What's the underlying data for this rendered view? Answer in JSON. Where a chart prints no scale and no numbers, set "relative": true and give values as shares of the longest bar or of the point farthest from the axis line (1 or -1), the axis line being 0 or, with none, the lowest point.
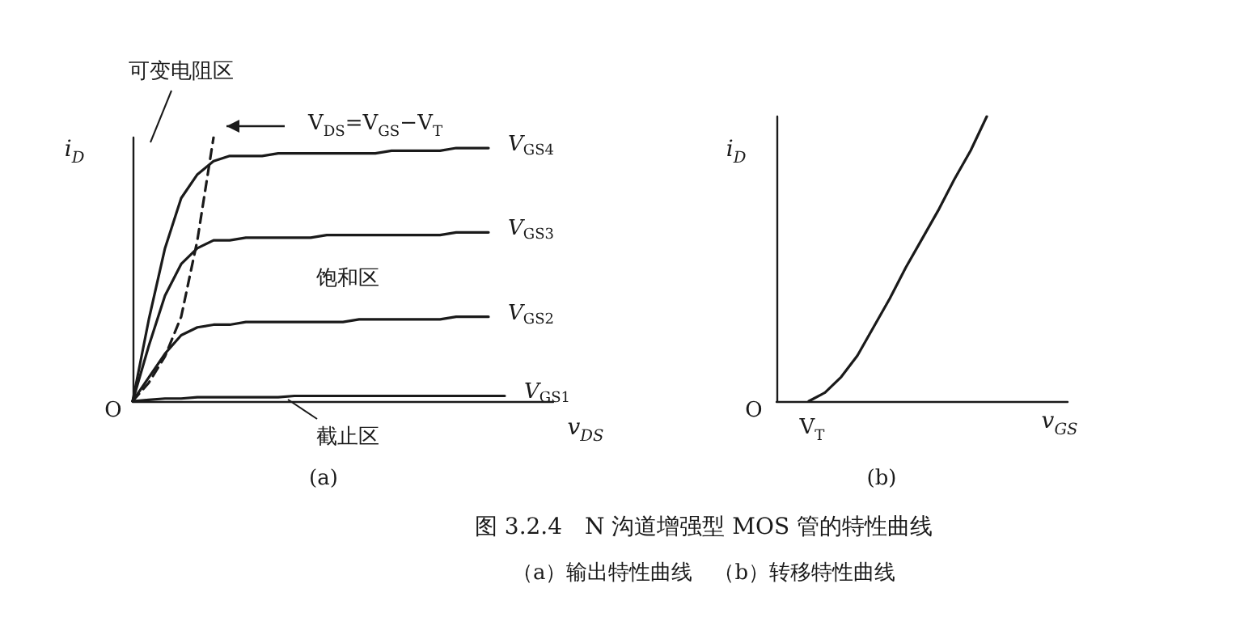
{
  "chart_data": [
    {
      "type": "line",
      "relative": true,
      "title": "图 3.2.4　N 沟道增强型 MOS 管的特性曲线",
      "subtitle": "（a）输出特性曲线　（b）转移特性曲线",
      "xlabel": "v$_{DS}$",
      "ylabel": "i$_{D}$",
      "marker": "none",
      "categories": [
        null,
        null,
        null,
        null,
        null,
        null,
        null,
        null,
        null,
        null,
        null,
        null,
        null,
        null,
        null,
        null,
        null,
        null,
        null,
        null,
        null,
        null,
        null,
        null,
        null,
        null,
        null
      ],
      "series": [
        {
          "name": "V$_{GS4}$",
          "color": "#1a1a1a",
          "values": [
            0,
            0.31,
            0.58,
            0.77,
            0.86,
            0.91,
            0.93,
            0.93,
            0.93,
            0.94,
            0.94,
            0.94,
            0.94,
            0.94,
            0.94,
            0.94,
            0.95,
            0.95,
            0.95,
            0.95,
            0.96,
            0.96,
            0.96,
            null,
            null,
            null,
            null
          ]
        },
        {
          "name": "V$_{GS3}$",
          "color": "#1a1a1a",
          "values": [
            0,
            0.21,
            0.4,
            0.52,
            0.58,
            0.61,
            0.61,
            0.62,
            0.62,
            0.62,
            0.62,
            0.62,
            0.63,
            0.63,
            0.63,
            0.63,
            0.63,
            0.63,
            0.63,
            0.63,
            0.64,
            0.64,
            0.64,
            null,
            null,
            null,
            null
          ]
        },
        {
          "name": "V$_{GS2}$",
          "color": "#1a1a1a",
          "values": [
            0,
            0.09,
            0.18,
            0.25,
            0.28,
            0.29,
            0.29,
            0.3,
            0.3,
            0.3,
            0.3,
            0.3,
            0.3,
            0.3,
            0.31,
            0.31,
            0.31,
            0.31,
            0.31,
            0.31,
            0.32,
            0.32,
            0.32,
            null,
            null,
            null,
            null
          ]
        },
        {
          "name": "V$_{GS1}$",
          "color": "#1a1a1a",
          "values": [
            0,
            0.005,
            0.01,
            0.01,
            0.015,
            0.015,
            0.015,
            0.015,
            0.015,
            0.015,
            0.02,
            0.02,
            0.02,
            0.02,
            0.02,
            0.02,
            0.02,
            0.02,
            0.02,
            0.02,
            0.02,
            0.02,
            0.02,
            0.02,
            null,
            null,
            null
          ]
        },
        {
          "color": "#1a1a1a",
          "line_style": "dashed",
          "values": [
            0,
            0.07,
            0.17,
            0.32,
            0.61,
            1,
            null,
            null,
            null,
            null,
            null,
            null,
            null,
            null,
            null,
            null,
            null,
            null,
            null,
            null,
            null,
            null,
            null,
            null,
            null,
            null,
            null
          ]
        }
      ],
      "annotations": [
        "O",
        "可变电阻区",
        "V$_{DS}$=V$_{GS}$−V$_{T}$",
        "饱和区",
        "截止区",
        "(a)"
      ]
    },
    {
      "type": "line",
      "relative": true,
      "xlabel": "v$_{GS}$",
      "ylabel": "i$_{D}$",
      "marker": "none",
      "categories": [
        null,
        null,
        null,
        null,
        null,
        null,
        null,
        null,
        null,
        null,
        null,
        null,
        null,
        null,
        null,
        null,
        null,
        null,
        null
      ],
      "series": [
        {
          "color": "#1a1a1a",
          "values": [
            null,
            null,
            0,
            0.03,
            0.085,
            0.16,
            0.26,
            0.36,
            0.47,
            0.57,
            0.67,
            0.78,
            0.88,
            1,
            null,
            null,
            null,
            null,
            null
          ]
        }
      ],
      "annotations": [
        "O",
        "V$_{T}$",
        "(b)"
      ]
    }
  ]
}
